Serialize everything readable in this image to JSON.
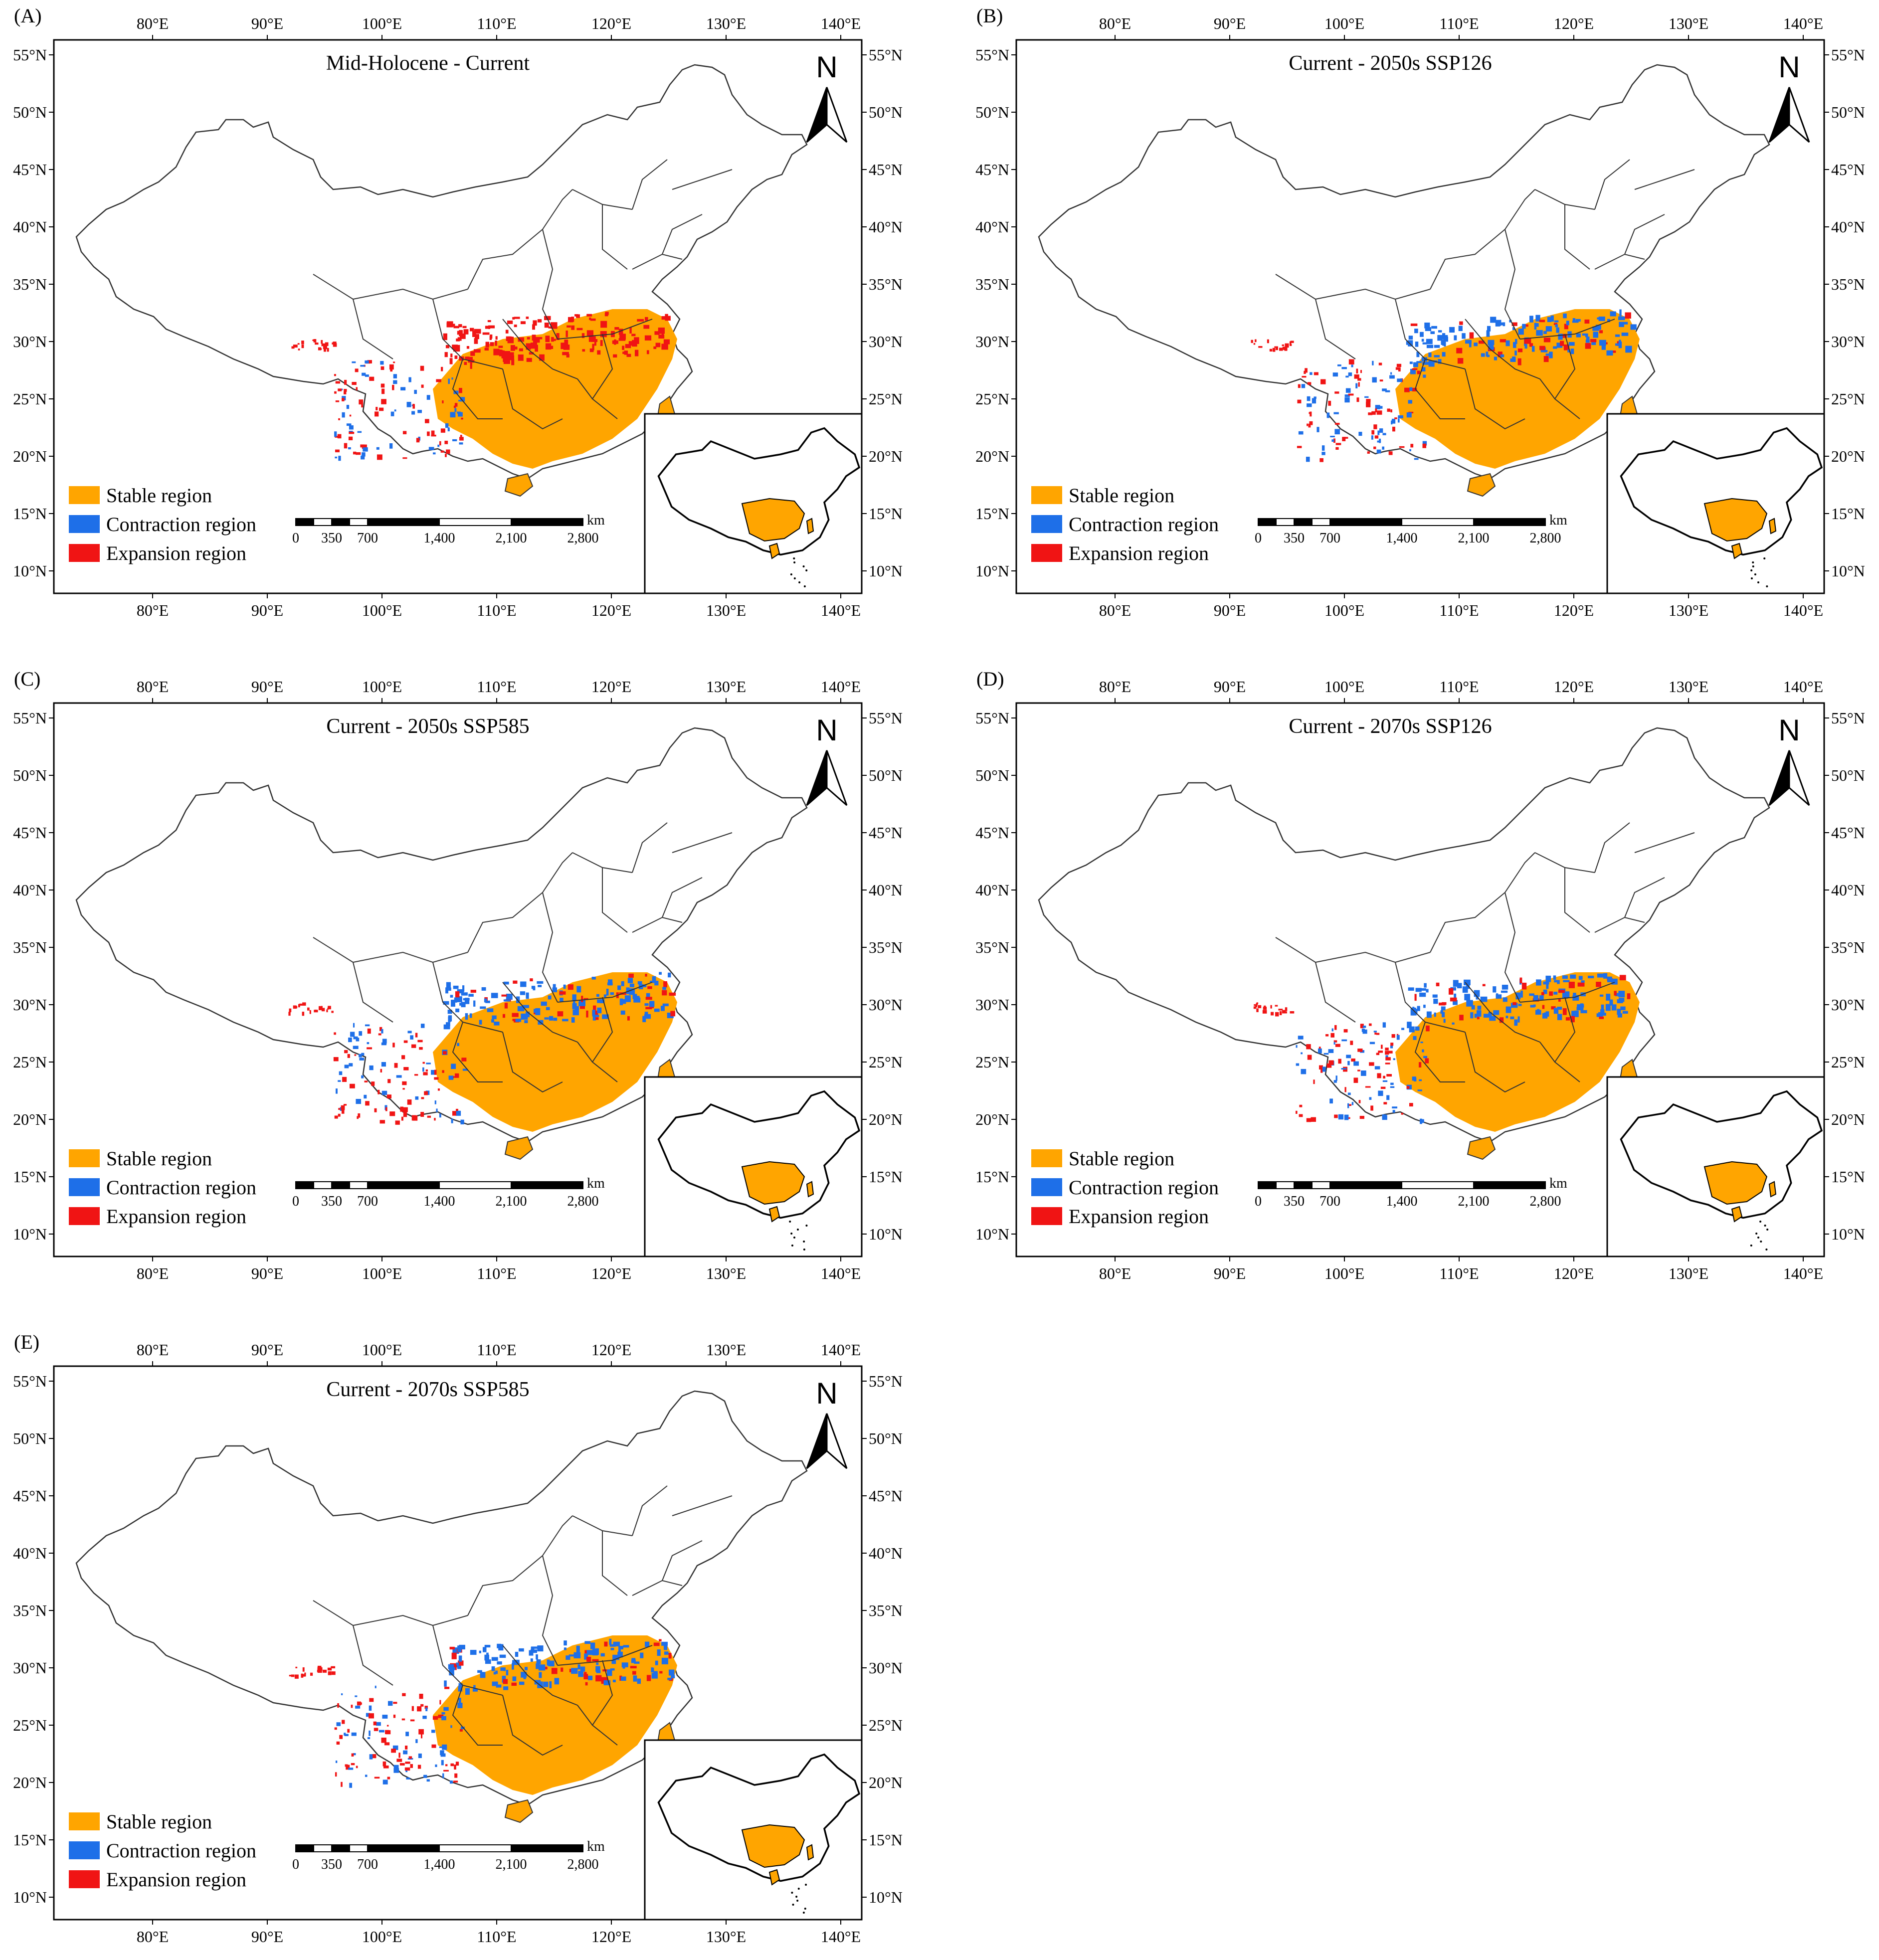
{
  "figure": {
    "colors": {
      "stable": "#FFA500",
      "contraction": "#1E6FE8",
      "expansion": "#F01414",
      "outline": "#333333"
    },
    "panels": [
      {
        "label": "(A)",
        "title": "Mid-Holocene - Current"
      },
      {
        "label": "(B)",
        "title": "Current - 2050s SSP126"
      },
      {
        "label": "(C)",
        "title": "Current - 2050s SSP585"
      },
      {
        "label": "(D)",
        "title": "Current - 2070s SSP126"
      },
      {
        "label": "(E)",
        "title": "Current - 2070s SSP585"
      }
    ],
    "lon_ticks": [
      "80°E",
      "90°E",
      "100°E",
      "110°E",
      "120°E",
      "130°E",
      "140°E"
    ],
    "lat_ticks": [
      "55°N",
      "50°N",
      "45°N",
      "40°N",
      "35°N",
      "30°N",
      "25°N",
      "20°N",
      "15°N",
      "10°N"
    ],
    "legend": [
      "Stable region",
      "Contraction region",
      "Expansion region"
    ],
    "scale_labels": [
      "0",
      "350",
      "700",
      "1,400",
      "2,100",
      "2,800"
    ],
    "scale_unit": "km",
    "north": "N"
  }
}
